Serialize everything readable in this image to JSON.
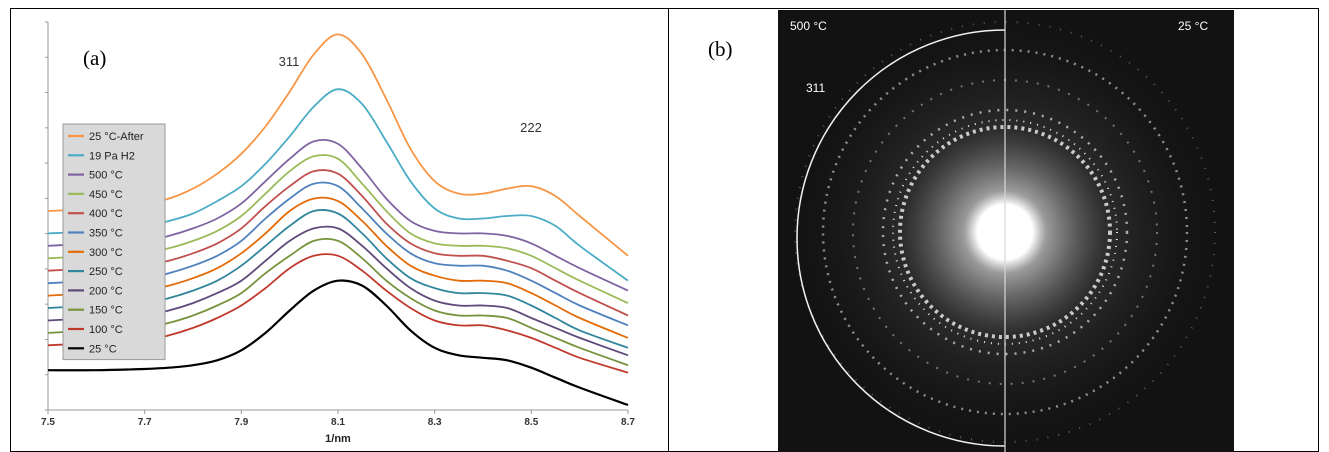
{
  "panel_a": {
    "label": "(a)"
  },
  "panel_b": {
    "label": "(b)",
    "left_temp": "500 °C",
    "right_temp": "25 °C",
    "ring_label": "311"
  },
  "chart_data": {
    "type": "line",
    "xlabel": "1/nm",
    "xlim": [
      7.5,
      8.7
    ],
    "x_ticks": [
      "7.5",
      "7.7",
      "7.9",
      "8.1",
      "8.3",
      "8.5",
      "8.7"
    ],
    "annotations": [
      "311",
      "222"
    ],
    "legend_position": "left",
    "x": [
      7.5,
      7.6,
      7.7,
      7.75,
      7.8,
      7.85,
      7.9,
      7.95,
      8.0,
      8.05,
      8.1,
      8.15,
      8.2,
      8.25,
      8.3,
      8.35,
      8.4,
      8.45,
      8.5,
      8.55,
      8.6,
      8.7
    ],
    "series": [
      {
        "name": "25 °C-After",
        "color": "#f79646",
        "values": [
          6.4,
          6.5,
          6.7,
          6.9,
          7.3,
          7.9,
          8.7,
          9.8,
          11.2,
          12.7,
          13.5,
          12.7,
          10.9,
          8.9,
          7.6,
          7.1,
          7.1,
          7.3,
          7.4,
          7.0,
          6.2,
          4.6
        ]
      },
      {
        "name": "19 Pa H2",
        "color": "#4bacc6",
        "values": [
          5.5,
          5.6,
          5.8,
          6.0,
          6.3,
          6.8,
          7.4,
          8.3,
          9.4,
          10.6,
          11.3,
          10.7,
          9.2,
          7.6,
          6.5,
          6.1,
          6.1,
          6.2,
          6.2,
          5.8,
          5.0,
          3.6
        ]
      },
      {
        "name": "500 °C",
        "color": "#8064a2",
        "values": [
          5.0,
          5.1,
          5.2,
          5.4,
          5.7,
          6.1,
          6.7,
          7.6,
          8.5,
          9.2,
          9.1,
          8.1,
          6.9,
          6.0,
          5.6,
          5.5,
          5.5,
          5.4,
          5.1,
          4.6,
          4.1,
          3.2
        ]
      },
      {
        "name": "450 °C",
        "color": "#9bbb59",
        "values": [
          4.5,
          4.6,
          4.7,
          4.9,
          5.2,
          5.6,
          6.2,
          7.1,
          8.0,
          8.6,
          8.5,
          7.5,
          6.4,
          5.5,
          5.1,
          5.0,
          5.0,
          4.9,
          4.6,
          4.1,
          3.6,
          2.7
        ]
      },
      {
        "name": "400 °C",
        "color": "#c0504d",
        "values": [
          4.0,
          4.1,
          4.2,
          4.4,
          4.7,
          5.1,
          5.7,
          6.6,
          7.4,
          8.0,
          7.9,
          7.0,
          5.9,
          5.1,
          4.7,
          4.6,
          4.6,
          4.4,
          4.1,
          3.6,
          3.1,
          2.2
        ]
      },
      {
        "name": "350 °C",
        "color": "#4f81bd",
        "values": [
          3.5,
          3.6,
          3.7,
          3.9,
          4.2,
          4.6,
          5.2,
          6.1,
          6.9,
          7.5,
          7.4,
          6.5,
          5.5,
          4.7,
          4.3,
          4.2,
          4.2,
          4.0,
          3.6,
          3.1,
          2.6,
          1.8
        ]
      },
      {
        "name": "300 °C",
        "color": "#e36c09",
        "values": [
          3.0,
          3.1,
          3.2,
          3.4,
          3.7,
          4.1,
          4.7,
          5.5,
          6.4,
          6.9,
          6.8,
          6.0,
          5.0,
          4.2,
          3.8,
          3.6,
          3.6,
          3.5,
          3.1,
          2.6,
          2.1,
          1.3
        ]
      },
      {
        "name": "250 °C",
        "color": "#31859c",
        "values": [
          2.5,
          2.6,
          2.7,
          2.9,
          3.2,
          3.6,
          4.2,
          5.0,
          5.8,
          6.4,
          6.3,
          5.5,
          4.5,
          3.7,
          3.3,
          3.1,
          3.1,
          3.0,
          2.6,
          2.1,
          1.6,
          0.9
        ]
      },
      {
        "name": "200 °C",
        "color": "#5f497a",
        "values": [
          2.0,
          2.1,
          2.2,
          2.4,
          2.7,
          3.1,
          3.6,
          4.4,
          5.2,
          5.7,
          5.7,
          5.0,
          4.1,
          3.3,
          2.8,
          2.6,
          2.6,
          2.5,
          2.1,
          1.7,
          1.3,
          0.6
        ]
      },
      {
        "name": "150 °C",
        "color": "#77933c",
        "values": [
          1.5,
          1.6,
          1.7,
          1.9,
          2.2,
          2.6,
          3.1,
          3.9,
          4.6,
          5.2,
          5.2,
          4.5,
          3.6,
          2.9,
          2.4,
          2.2,
          2.2,
          2.1,
          1.7,
          1.3,
          0.9,
          0.2
        ]
      },
      {
        "name": "100 °C",
        "color": "#c0392b",
        "values": [
          1.0,
          1.1,
          1.2,
          1.4,
          1.7,
          2.1,
          2.6,
          3.3,
          4.1,
          4.6,
          4.6,
          4.0,
          3.2,
          2.5,
          2.0,
          1.8,
          1.8,
          1.6,
          1.3,
          0.9,
          0.5,
          -0.1
        ]
      },
      {
        "name": "25 °C",
        "color": "#000000",
        "values": [
          0.0,
          0.0,
          0.05,
          0.1,
          0.2,
          0.4,
          0.8,
          1.5,
          2.4,
          3.2,
          3.6,
          3.4,
          2.6,
          1.6,
          0.9,
          0.6,
          0.5,
          0.4,
          0.1,
          -0.3,
          -0.7,
          -1.4
        ]
      }
    ]
  }
}
